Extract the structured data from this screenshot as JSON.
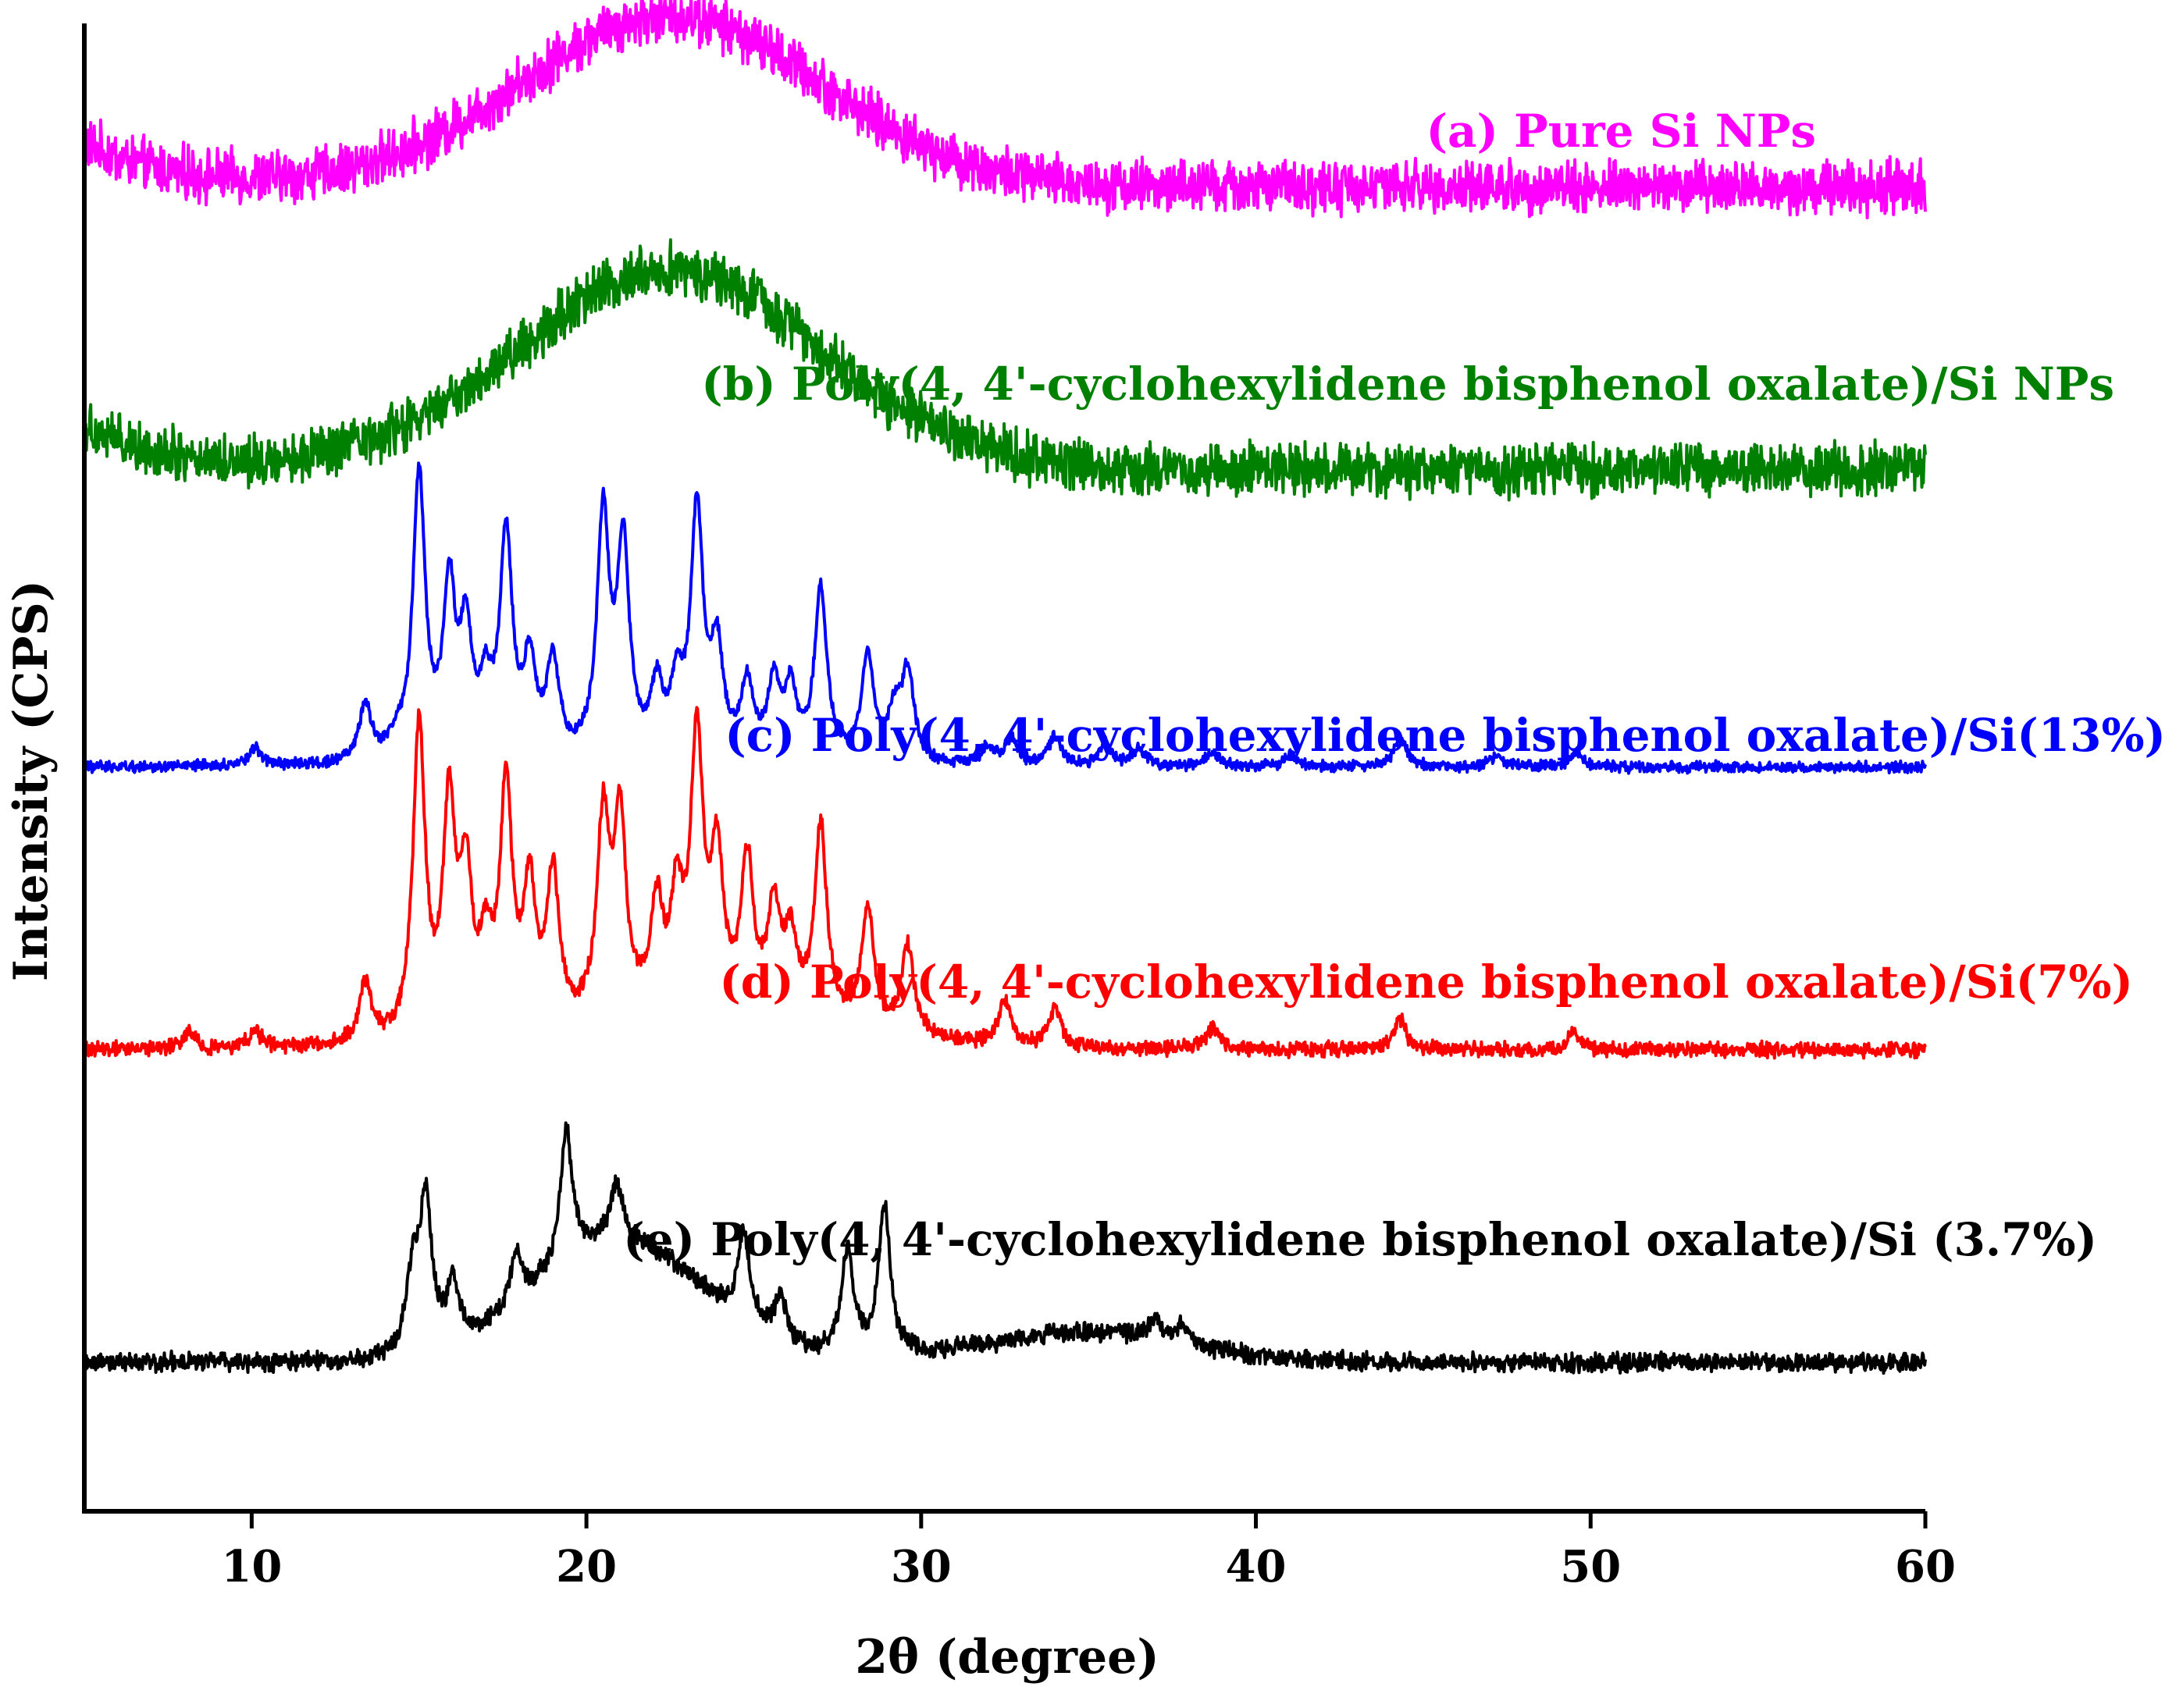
{
  "chart_data": {
    "type": "line",
    "title": "",
    "xlabel": "2θ (degree)",
    "ylabel": "Intensity (CPS)",
    "xlim": [
      5,
      60
    ],
    "xticks": [
      10,
      20,
      30,
      40,
      50,
      60
    ],
    "xtick_labels": [
      "10",
      "20",
      "30",
      "40",
      "50",
      "60"
    ],
    "ytick_labels": [],
    "grid": false,
    "legend": "labels placed beside each curve",
    "series": [
      {
        "name": "(a) Pure Si NPs",
        "color": "#ff00ff",
        "offset": 0.89,
        "baseline": 0.0,
        "noise": 0.028,
        "broad_peaks": [
          {
            "x": 22.5,
            "h": 0.115,
            "w": 9
          }
        ],
        "sharp_peaks": [],
        "slope_start": 0.03
      },
      {
        "name": "(b) Poly(4, 4'-cyclohexylidene bisphenol oxalate)/Si NPs",
        "color": "#008000",
        "offset": 0.7,
        "baseline": 0.0,
        "noise": 0.028,
        "broad_peaks": [
          {
            "x": 22.5,
            "h": 0.135,
            "w": 9
          }
        ],
        "sharp_peaks": [],
        "slope_start": 0.03
      },
      {
        "name": "(c) Poly(4, 4'-cyclohexylidene bisphenol oxalate)/Si(13%)",
        "color": "#0000ff",
        "offset": 0.5,
        "baseline": 0.0,
        "noise": 0.006,
        "broad_peaks": [],
        "sharp_peaks": [
          {
            "x": 10.1,
            "h": 0.012
          },
          {
            "x": 13.4,
            "h": 0.038
          },
          {
            "x": 14.3,
            "h": 0.012
          },
          {
            "x": 15.0,
            "h": 0.19
          },
          {
            "x": 15.9,
            "h": 0.11
          },
          {
            "x": 16.4,
            "h": 0.08
          },
          {
            "x": 17.0,
            "h": 0.04
          },
          {
            "x": 17.6,
            "h": 0.15
          },
          {
            "x": 18.3,
            "h": 0.06
          },
          {
            "x": 19.0,
            "h": 0.065
          },
          {
            "x": 20.5,
            "h": 0.16
          },
          {
            "x": 21.1,
            "h": 0.14
          },
          {
            "x": 22.1,
            "h": 0.045
          },
          {
            "x": 22.7,
            "h": 0.045
          },
          {
            "x": 23.3,
            "h": 0.165
          },
          {
            "x": 23.9,
            "h": 0.07
          },
          {
            "x": 24.8,
            "h": 0.05
          },
          {
            "x": 25.6,
            "h": 0.05
          },
          {
            "x": 26.1,
            "h": 0.045
          },
          {
            "x": 27.0,
            "h": 0.115
          },
          {
            "x": 28.4,
            "h": 0.07
          },
          {
            "x": 29.2,
            "h": 0.03
          },
          {
            "x": 29.6,
            "h": 0.06
          },
          {
            "x": 32.0,
            "h": 0.012
          },
          {
            "x": 32.7,
            "h": 0.018
          },
          {
            "x": 34.0,
            "h": 0.02
          },
          {
            "x": 35.5,
            "h": 0.015
          },
          {
            "x": 36.5,
            "h": 0.012
          },
          {
            "x": 38.7,
            "h": 0.01
          },
          {
            "x": 41.0,
            "h": 0.008
          },
          {
            "x": 44.3,
            "h": 0.02
          },
          {
            "x": 47.2,
            "h": 0.008
          },
          {
            "x": 49.6,
            "h": 0.01
          }
        ],
        "slope_start": 0.0
      },
      {
        "name": "(d) Poly(4, 4'-cyclohexylidene bisphenol oxalate)/Si(7%)",
        "color": "#ff0000",
        "offset": 0.31,
        "baseline": 0.0,
        "noise": 0.008,
        "broad_peaks": [
          {
            "x": 24,
            "h": 0.02,
            "w": 8
          }
        ],
        "sharp_peaks": [
          {
            "x": 8.1,
            "h": 0.012
          },
          {
            "x": 10.1,
            "h": 0.012
          },
          {
            "x": 13.4,
            "h": 0.04
          },
          {
            "x": 15.0,
            "h": 0.21
          },
          {
            "x": 15.9,
            "h": 0.15
          },
          {
            "x": 16.4,
            "h": 0.1
          },
          {
            "x": 17.0,
            "h": 0.05
          },
          {
            "x": 17.6,
            "h": 0.16
          },
          {
            "x": 18.3,
            "h": 0.09
          },
          {
            "x": 19.0,
            "h": 0.1
          },
          {
            "x": 20.5,
            "h": 0.13
          },
          {
            "x": 21.0,
            "h": 0.13
          },
          {
            "x": 22.1,
            "h": 0.07
          },
          {
            "x": 22.7,
            "h": 0.07
          },
          {
            "x": 23.3,
            "h": 0.18
          },
          {
            "x": 23.9,
            "h": 0.1
          },
          {
            "x": 24.8,
            "h": 0.1
          },
          {
            "x": 25.6,
            "h": 0.07
          },
          {
            "x": 26.1,
            "h": 0.05
          },
          {
            "x": 27.0,
            "h": 0.13
          },
          {
            "x": 28.4,
            "h": 0.08
          },
          {
            "x": 29.6,
            "h": 0.06
          },
          {
            "x": 32.5,
            "h": 0.03
          },
          {
            "x": 34.0,
            "h": 0.025
          },
          {
            "x": 38.7,
            "h": 0.015
          },
          {
            "x": 44.3,
            "h": 0.02
          },
          {
            "x": 49.5,
            "h": 0.012
          }
        ],
        "slope_start": 0.0
      },
      {
        "name": "(e) Poly(4, 4'-cyclohexylidene bisphenol oxalate)/Si (3.7%)",
        "color": "#000000",
        "offset": 0.1,
        "baseline": 0.0,
        "noise": 0.01,
        "broad_peaks": [
          {
            "x": 21,
            "h": 0.08,
            "w": 5
          },
          {
            "x": 35,
            "h": 0.02,
            "w": 6
          }
        ],
        "sharp_peaks": [
          {
            "x": 14.8,
            "h": 0.05
          },
          {
            "x": 15.2,
            "h": 0.1
          },
          {
            "x": 16.0,
            "h": 0.04
          },
          {
            "x": 17.9,
            "h": 0.035
          },
          {
            "x": 19.4,
            "h": 0.09
          },
          {
            "x": 20.9,
            "h": 0.04
          },
          {
            "x": 24.7,
            "h": 0.06
          },
          {
            "x": 25.8,
            "h": 0.03
          },
          {
            "x": 27.8,
            "h": 0.07
          },
          {
            "x": 28.9,
            "h": 0.1
          },
          {
            "x": 37.0,
            "h": 0.012
          },
          {
            "x": 37.8,
            "h": 0.012
          }
        ],
        "slope_start": 0.0
      }
    ]
  }
}
